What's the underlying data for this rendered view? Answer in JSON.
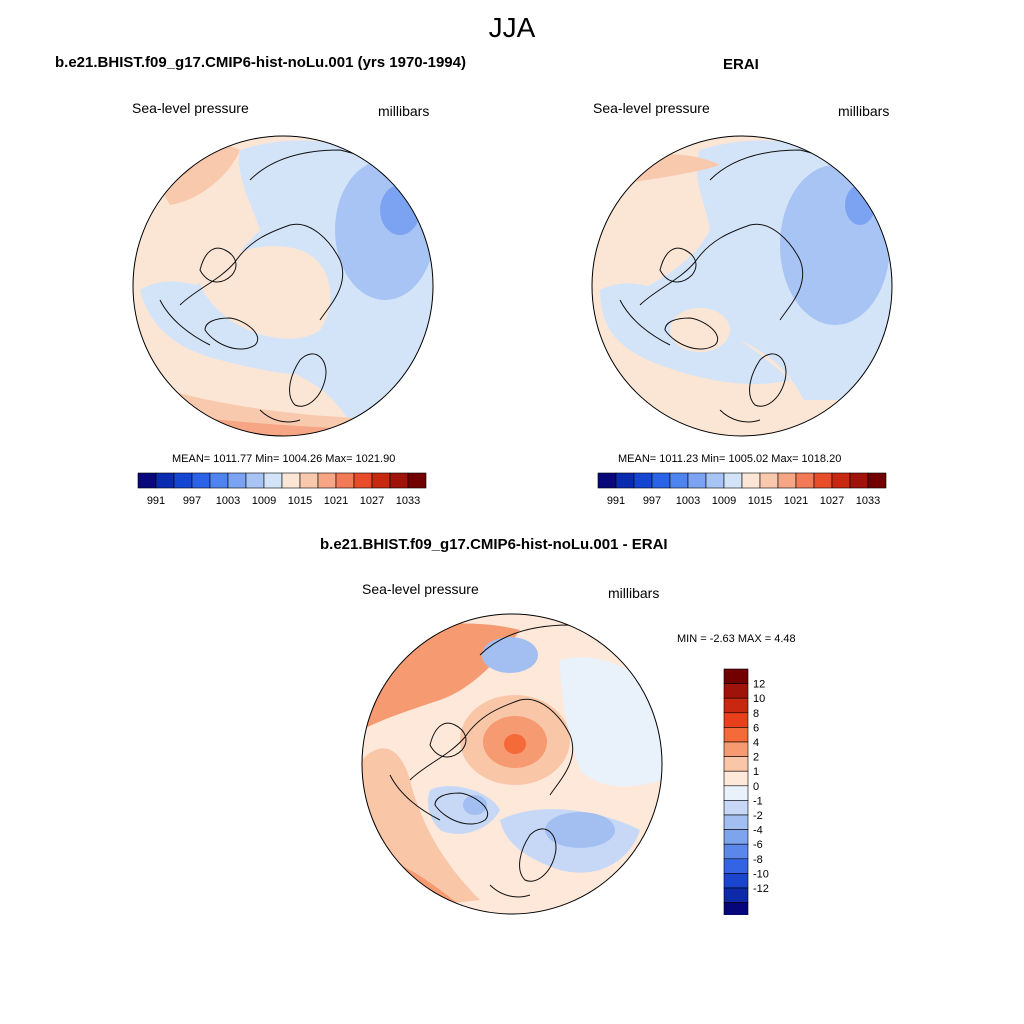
{
  "page": {
    "title": "JJA"
  },
  "panels": [
    {
      "title": "b.e21.BHIST.f09_g17.CMIP6-hist-noLu.001 (yrs 1970-1994)",
      "left_label": "Sea-level pressure",
      "right_label": "millibars",
      "stats": "MEAN= 1011.77  Min= 1004.26  Max= 1021.90"
    },
    {
      "title": "ERAI",
      "left_label": "Sea-level pressure",
      "right_label": "millibars",
      "stats": "MEAN= 1011.23  Min= 1005.02  Max= 1018.20"
    },
    {
      "title": "b.e21.BHIST.f09_g17.CMIP6-hist-noLu.001 - ERAI",
      "left_label": "Sea-level pressure",
      "right_label": "millibars",
      "stats": "MIN =  -2.63 MAX =   4.48"
    }
  ],
  "abs_colorbar": {
    "colors": [
      "#08087a",
      "#0a2bb0",
      "#1446d2",
      "#2b63e8",
      "#4f83f0",
      "#7ca3f2",
      "#a8c4f4",
      "#d4e4f8",
      "#fbe6d6",
      "#f9c9ad",
      "#f6a585",
      "#f27a56",
      "#e84d2a",
      "#c7280f",
      "#a0130a",
      "#730000"
    ],
    "labels": [
      "991",
      "997",
      "1003",
      "1009",
      "1015",
      "1021",
      "1027",
      "1033"
    ]
  },
  "diff_colorbar": {
    "colors": [
      "#730000",
      "#a0130a",
      "#c7280f",
      "#e8401b",
      "#f46a38",
      "#f69a72",
      "#f9c7a8",
      "#fde8da",
      "#e9f1fb",
      "#c6d8f6",
      "#a3bff2",
      "#7fa4ee",
      "#5b86ea",
      "#3464e4",
      "#1b44cf",
      "#0d2aa8",
      "#06057a"
    ],
    "labels": [
      "12",
      "10",
      "8",
      "6",
      "4",
      "2",
      "1",
      "0",
      "-1",
      "-2",
      "-4",
      "-6",
      "-8",
      "-10",
      "-12"
    ]
  }
}
